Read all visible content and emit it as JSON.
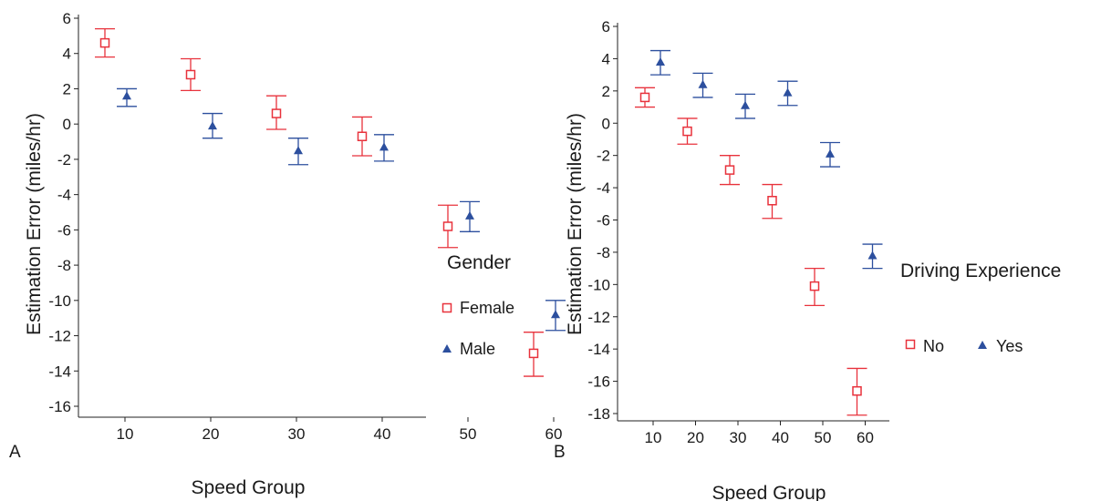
{
  "chart_data": [
    {
      "panel_label": "A",
      "type": "scatter",
      "error_bars": true,
      "xlabel": "Speed Group",
      "ylabel": "Estimation Error (miles/hr)",
      "categories": [
        "10",
        "20",
        "30",
        "40",
        "50",
        "60"
      ],
      "ylim": [
        -16,
        6
      ],
      "yticks": [
        6,
        4,
        2,
        0,
        -2,
        -4,
        -6,
        -8,
        -10,
        -12,
        -14,
        -16
      ],
      "grid": false,
      "legend": {
        "title": "Gender",
        "placement": "right"
      },
      "series": [
        {
          "name": "Female",
          "marker": "open-square",
          "color": "#e8323c",
          "values": [
            4.6,
            2.8,
            0.6,
            -0.7,
            -5.8,
            -13.0
          ],
          "lower": [
            3.8,
            1.9,
            -0.3,
            -1.8,
            -7.0,
            -14.3
          ],
          "upper": [
            5.4,
            3.7,
            1.6,
            0.4,
            -4.6,
            -11.8
          ]
        },
        {
          "name": "Male",
          "marker": "filled-triangle",
          "color": "#2c4f9e",
          "values": [
            1.6,
            -0.1,
            -1.5,
            -1.3,
            -5.2,
            -10.8
          ],
          "lower": [
            1.0,
            -0.8,
            -2.3,
            -2.1,
            -6.1,
            -11.7
          ],
          "upper": [
            2.0,
            0.6,
            -0.8,
            -0.6,
            -4.4,
            -10.0
          ]
        }
      ]
    },
    {
      "panel_label": "B",
      "type": "scatter",
      "error_bars": true,
      "xlabel": "Speed Group",
      "ylabel": "Estimation Error (miles/hr)",
      "categories": [
        "10",
        "20",
        "30",
        "40",
        "50",
        "60"
      ],
      "ylim": [
        -18,
        6
      ],
      "yticks": [
        6,
        4,
        2,
        0,
        -2,
        -4,
        -6,
        -8,
        -10,
        -12,
        -14,
        -16,
        -18
      ],
      "grid": false,
      "legend": {
        "title": "Driving Experience",
        "placement": "right"
      },
      "series": [
        {
          "name": "No",
          "marker": "open-square",
          "color": "#e8323c",
          "values": [
            1.6,
            -0.5,
            -2.9,
            -4.8,
            -10.1,
            -16.6
          ],
          "lower": [
            1.0,
            -1.3,
            -3.8,
            -5.9,
            -11.3,
            -18.1
          ],
          "upper": [
            2.2,
            0.3,
            -2.0,
            -3.8,
            -9.0,
            -15.2
          ]
        },
        {
          "name": "Yes",
          "marker": "filled-triangle",
          "color": "#2c4f9e",
          "values": [
            3.8,
            2.4,
            1.1,
            1.9,
            -1.9,
            -8.2
          ],
          "lower": [
            3.0,
            1.6,
            0.3,
            1.1,
            -2.7,
            -9.0
          ],
          "upper": [
            4.5,
            3.1,
            1.8,
            2.6,
            -1.2,
            -7.5
          ]
        }
      ]
    }
  ]
}
